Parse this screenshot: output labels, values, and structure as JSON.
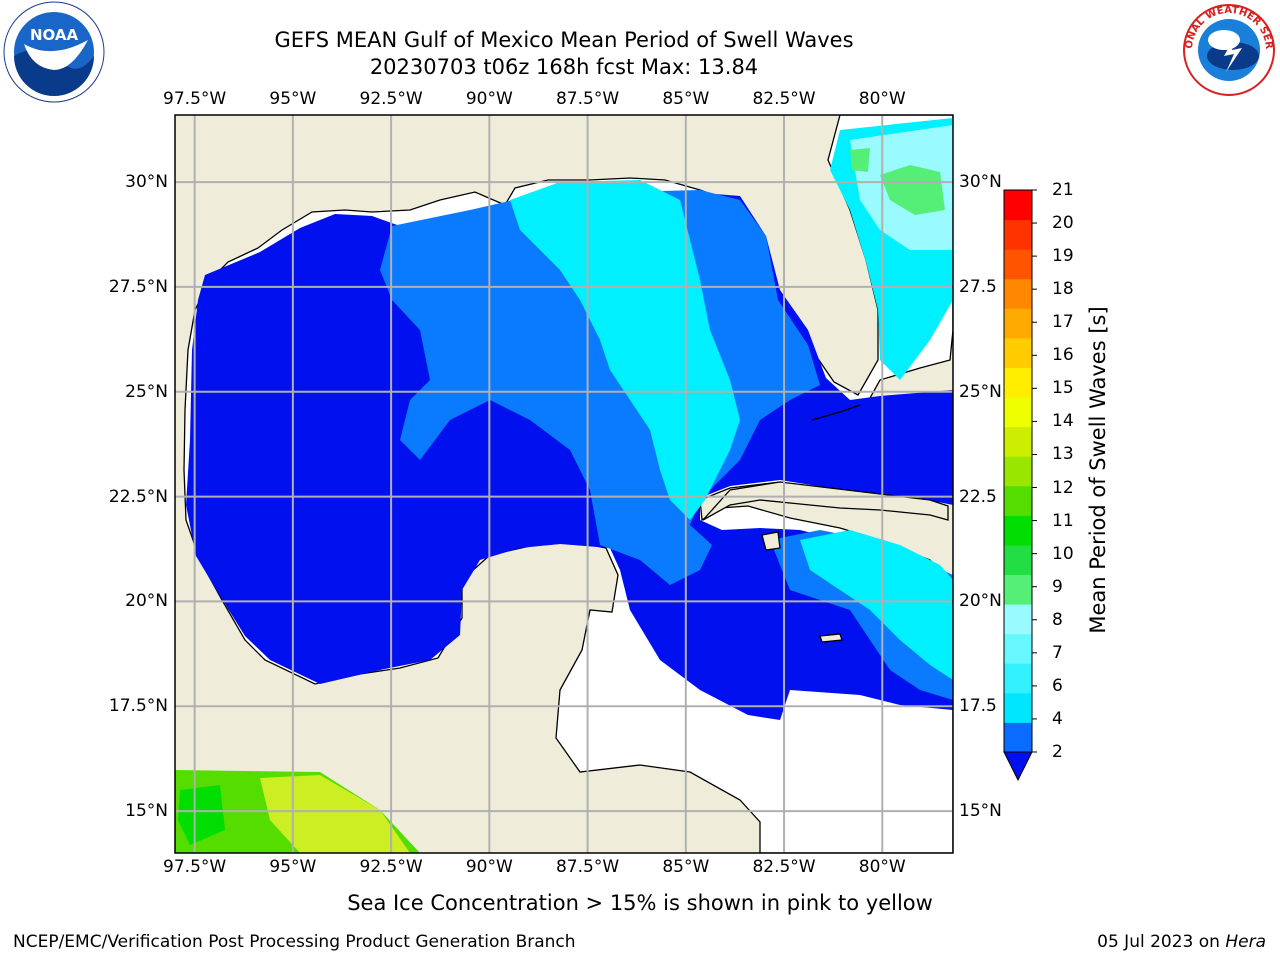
{
  "title": {
    "line1": "GEFS MEAN Gulf of Mexico Mean Period of Swell Waves",
    "line2": "20230703 t06z 168h fcst   Max: 13.84"
  },
  "map": {
    "lon_labels": [
      "97.5°W",
      "95°W",
      "92.5°W",
      "90°W",
      "87.5°W",
      "85°W",
      "82.5°W",
      "80°W"
    ],
    "lat_labels_left": [
      "30°N",
      "27.5°N",
      "25°N",
      "22.5°N",
      "20°N",
      "17.5°N",
      "15°N"
    ],
    "lat_labels_right": [
      "30°N",
      "27.5",
      "25°N",
      "22.5",
      "20°N",
      "17.5",
      "15°N"
    ],
    "lon_range": [
      -98,
      -78.2
    ],
    "lat_range": [
      14,
      31.6
    ],
    "colors": {
      "land": "#efedda",
      "ocean_nodata": "#ffffff",
      "grid": "#b0b0b0"
    }
  },
  "colorbar": {
    "title": "Mean Period of Swell Waves [s]",
    "ticks": [
      "21",
      "20",
      "19",
      "18",
      "17",
      "16",
      "15",
      "14",
      "13",
      "12",
      "11",
      "10",
      "9",
      "8",
      "7",
      "6",
      "4",
      "2"
    ],
    "colors": [
      "#0a6bff",
      "#00e6ff",
      "#33f0ff",
      "#66f7ff",
      "#99fbff",
      "#55ee77",
      "#22dd44",
      "#00dd00",
      "#55dd00",
      "#99e600",
      "#ccee00",
      "#eeff00",
      "#ffee00",
      "#ffcc00",
      "#ffaa00",
      "#ff8800",
      "#ff5500",
      "#ff3300",
      "#ff0000"
    ],
    "under_color": "#0010ee"
  },
  "ice_note": "Sea Ice Concentration > 15% is shown in pink to yellow",
  "footer": {
    "left": "NCEP/EMC/Verification Post Processing Product Generation Branch",
    "date": "05 Jul 2023 on ",
    "machine": "Hera"
  },
  "logos": {
    "noaa_text": "NOAA",
    "nws_text": "NATIONAL WEATHER SERVICE"
  }
}
